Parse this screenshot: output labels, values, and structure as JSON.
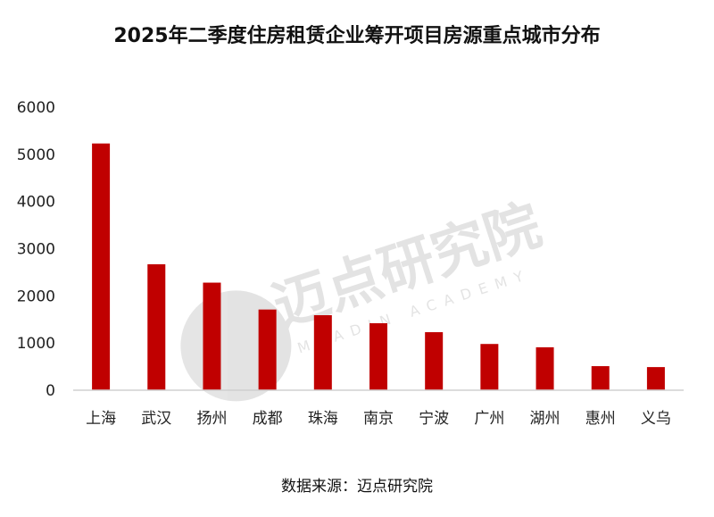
{
  "chart_data": {
    "type": "bar",
    "title": "2025年二季度住房租赁企业筹开项目房源重点城市分布",
    "categories": [
      "上海",
      "武汉",
      "扬州",
      "成都",
      "珠海",
      "南京",
      "宁波",
      "广州",
      "湖州",
      "惠州",
      "义乌"
    ],
    "values": [
      5230,
      2670,
      2280,
      1710,
      1590,
      1420,
      1230,
      980,
      910,
      510,
      490
    ],
    "ylim": [
      0,
      6000
    ],
    "yticks": [
      0,
      1000,
      2000,
      3000,
      4000,
      5000,
      6000
    ],
    "grid": false,
    "bar_color": "#C00000",
    "source": "数据来源：迈点研究院",
    "watermark": {
      "cn": "迈点研究院",
      "en": "MEADIN ACADEMY"
    }
  }
}
